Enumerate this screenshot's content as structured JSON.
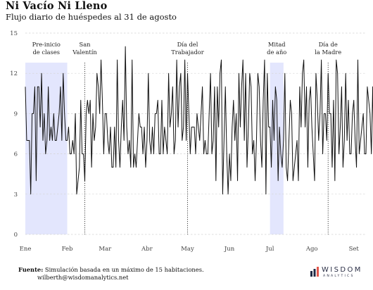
{
  "chart_data": {
    "type": "line",
    "title": "Ni Vacío Ni Lleno",
    "subtitle": "Flujo diario de huéspedes al 31 de agosto",
    "ylim": [
      0,
      15
    ],
    "yticks": [
      0,
      3,
      6,
      9,
      12,
      15
    ],
    "x_start": "2023-01-01",
    "x_end": "2023-09-10",
    "xticks": [
      {
        "date": "2023-01-01",
        "label": "Ene"
      },
      {
        "date": "2023-02-01",
        "label": "Feb"
      },
      {
        "date": "2023-03-01",
        "label": "Mar"
      },
      {
        "date": "2023-04-01",
        "label": "Abr"
      },
      {
        "date": "2023-05-01",
        "label": "May"
      },
      {
        "date": "2023-06-01",
        "label": "Jun"
      },
      {
        "date": "2023-07-01",
        "label": "Jul"
      },
      {
        "date": "2023-08-01",
        "label": "Ago"
      },
      {
        "date": "2023-09-01",
        "label": "Set"
      }
    ],
    "grid": true,
    "highlight_periods": [
      {
        "start": "2023-01-01",
        "end": "2023-01-31",
        "label": [
          "Pre-inicio",
          "de clases"
        ],
        "color": "#e3e6fd"
      },
      {
        "start": "2023-07-01",
        "end": "2023-07-10",
        "label": [
          "Mitad",
          "de año"
        ],
        "color": "#e3e6fd"
      }
    ],
    "event_lines": [
      {
        "date": "2023-02-14",
        "label": [
          "San",
          "Valentín"
        ]
      },
      {
        "date": "2023-05-01",
        "label": [
          "Día del",
          "Trabajador"
        ]
      },
      {
        "date": "2023-08-13",
        "label": [
          "Día de",
          "la Madre"
        ]
      }
    ],
    "series": [
      {
        "start_date": "2023-01-01",
        "values": [
          11,
          7,
          7,
          7,
          3,
          9,
          9,
          11,
          4,
          11,
          11,
          8,
          12,
          7,
          9,
          6,
          7,
          11,
          7,
          8,
          7,
          9,
          7,
          7,
          8,
          9,
          11,
          7,
          12,
          9,
          7,
          7,
          8,
          6,
          6,
          7,
          6,
          9,
          3,
          4,
          5,
          10,
          6,
          6,
          4,
          9,
          10,
          9,
          10,
          5,
          9,
          7,
          8,
          12,
          11,
          9,
          13,
          10,
          6,
          9,
          9,
          7,
          6,
          8,
          5,
          5,
          8,
          5,
          13,
          7,
          5,
          8,
          10,
          7,
          14,
          8,
          6,
          7,
          5,
          13,
          5,
          6,
          5,
          7,
          9,
          8,
          8,
          6,
          8,
          5,
          7,
          12,
          7,
          6,
          8,
          6,
          9,
          9,
          10,
          6,
          6,
          10,
          6,
          8,
          7,
          6,
          12,
          8,
          9,
          11,
          6,
          7,
          13,
          8,
          11,
          12,
          7,
          8,
          13,
          7,
          12,
          9,
          6,
          8,
          8,
          8,
          6,
          9,
          8,
          7,
          9,
          11,
          6,
          7,
          6,
          6,
          9,
          12,
          6,
          7,
          11,
          4,
          11,
          8,
          12,
          13,
          3,
          7,
          11,
          6,
          3,
          6,
          4,
          8,
          10,
          7,
          9,
          4,
          12,
          8,
          11,
          13,
          7,
          12,
          5,
          8,
          12,
          11,
          6,
          7,
          4,
          7,
          12,
          11,
          7,
          5,
          10,
          13,
          3,
          12,
          8,
          8,
          5,
          10,
          7,
          11,
          10,
          4,
          8,
          6,
          5,
          7,
          12,
          5,
          4,
          7,
          10,
          9,
          4,
          5,
          6,
          7,
          4,
          11,
          8,
          12,
          13,
          8,
          11,
          5,
          10,
          11,
          8,
          6,
          4,
          12,
          10,
          7,
          9,
          13,
          6,
          9,
          9,
          7,
          12,
          9,
          9,
          5,
          10,
          4,
          13,
          12,
          6,
          8,
          11,
          5,
          7,
          12,
          7,
          10,
          6,
          6,
          9,
          10,
          7,
          5,
          13,
          6,
          7,
          8,
          9,
          6,
          6,
          11,
          10,
          9,
          6,
          11,
          5,
          4,
          11,
          10,
          9,
          9,
          10,
          8,
          5,
          11,
          8,
          12,
          7,
          11,
          5,
          6,
          9,
          8,
          7,
          7,
          4,
          9,
          9,
          12,
          10,
          10,
          6,
          9,
          7,
          7,
          8,
          6,
          8,
          4,
          12,
          6,
          6,
          8,
          7,
          9,
          8,
          9,
          6,
          10,
          3,
          3,
          3,
          4,
          10,
          7,
          10,
          9,
          11,
          12,
          8,
          8,
          7,
          6,
          9,
          9
        ]
      }
    ],
    "source_label": "Fuente:",
    "source_text": "Simulación basada en un máximo de 15 habitaciones.",
    "contact": "wilberth@wisdomanalytics.net"
  },
  "logo": {
    "name": "WISDOM",
    "tagline": "ANALYTICS",
    "colors": [
      "#1f2a44",
      "#e2574c"
    ]
  }
}
